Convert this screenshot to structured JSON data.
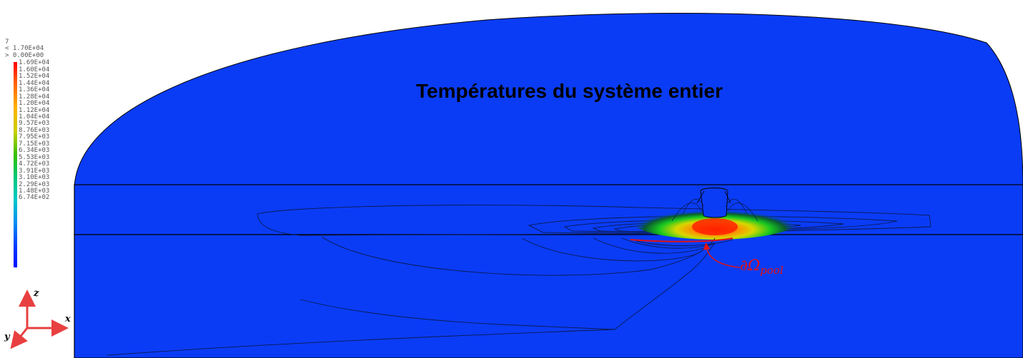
{
  "title": "Températures du système entier",
  "legend": {
    "header": "7",
    "over_label": "< 1.70E+04",
    "under_label": "> 0.00E+00",
    "ticks": [
      "1.69E+04",
      "1.60E+04",
      "1.52E+04",
      "1.44E+04",
      "1.36E+04",
      "1.28E+04",
      "1.20E+04",
      "1.12E+04",
      "1.04E+04",
      "9.57E+03",
      "8.76E+03",
      "7.95E+03",
      "7.15E+03",
      "6.34E+03",
      "5.53E+03",
      "4.72E+03",
      "3.91E+03",
      "3.10E+03",
      "2.29E+03",
      "1.48E+03",
      "6.74E+02"
    ]
  },
  "annotation": {
    "boundary_label": "∂Ω",
    "boundary_subscript": "pool"
  },
  "axes": {
    "z": "z",
    "x": "x",
    "y": "y"
  },
  "colors": {
    "domain": "#0a3cf5",
    "axis_triad": "#e84040",
    "annotation": "#e81010",
    "contour": "#0a1a50"
  }
}
